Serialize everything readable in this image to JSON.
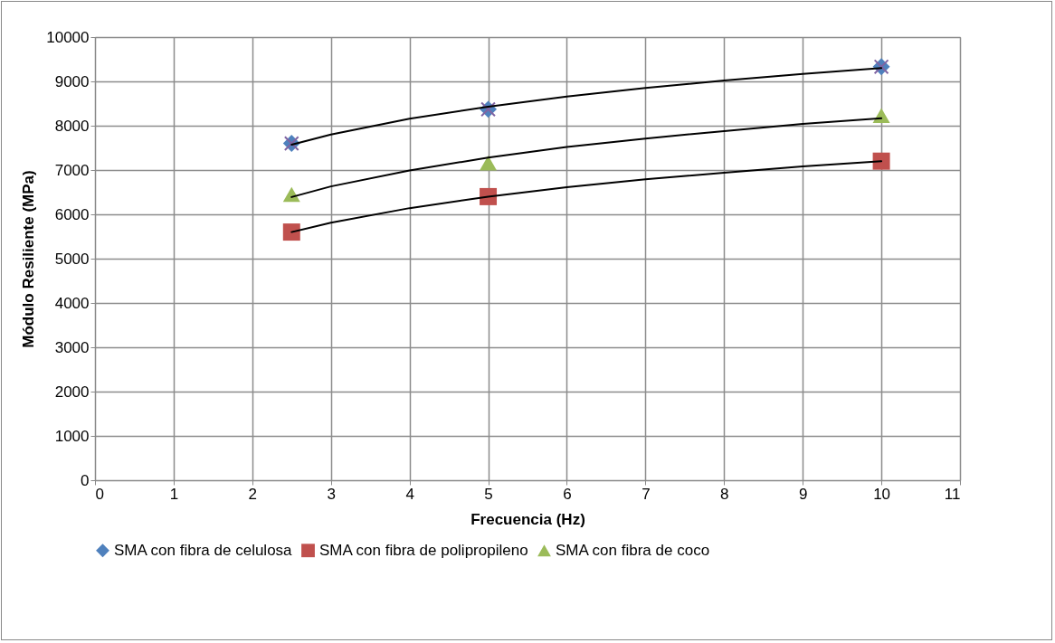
{
  "chart_data": {
    "type": "scatter",
    "xlabel": "Frecuencia (Hz)",
    "ylabel": "Módulo Resiliente (MPa)",
    "xlim": [
      0,
      11
    ],
    "xticks": [
      0,
      1,
      2,
      3,
      4,
      5,
      6,
      7,
      8,
      9,
      10,
      11
    ],
    "ylim": [
      0,
      10000
    ],
    "yticks": [
      0,
      1000,
      2000,
      3000,
      4000,
      5000,
      6000,
      7000,
      8000,
      9000,
      10000
    ],
    "grid": true,
    "legend": "bottom",
    "series": [
      {
        "type": "line",
        "color": "#000000",
        "x": [
          2.5,
          3,
          4,
          5,
          6,
          7,
          8,
          9,
          10
        ],
        "values": [
          7570,
          7800,
          8160,
          8430,
          8660,
          8850,
          9020,
          9170,
          9300
        ]
      },
      {
        "type": "line",
        "color": "#000000",
        "x": [
          2.5,
          3,
          4,
          5,
          6,
          7,
          8,
          9,
          10
        ],
        "values": [
          5600,
          5810,
          6140,
          6400,
          6610,
          6790,
          6940,
          7080,
          7200
        ]
      },
      {
        "type": "line",
        "color": "#000000",
        "x": [
          2.5,
          3,
          4,
          5,
          6,
          7,
          8,
          9,
          10
        ],
        "values": [
          6390,
          6630,
          6990,
          7280,
          7520,
          7710,
          7880,
          8040,
          8170
        ]
      },
      {
        "name": "SMA con fibra de celulosa",
        "color": "#4f81bd",
        "marker": "diamond",
        "x": [
          2.5,
          5,
          10
        ],
        "values": [
          7600,
          8370,
          9330
        ]
      },
      {
        "name": "SMA con fibra de polipropileno",
        "color": "#c0504d",
        "marker": "square",
        "x": [
          2.5,
          5,
          10
        ],
        "values": [
          5600,
          6400,
          7200
        ]
      },
      {
        "name": "SMA con fibra de coco",
        "color": "#9bbb59",
        "marker": "triangle",
        "x": [
          2.5,
          5,
          10
        ],
        "values": [
          6450,
          7160,
          8230
        ]
      },
      {
        "color": "#8064a2",
        "marker": "cross",
        "x": [
          2.5,
          5,
          10
        ],
        "values": [
          7600,
          8370,
          9330
        ]
      }
    ]
  }
}
